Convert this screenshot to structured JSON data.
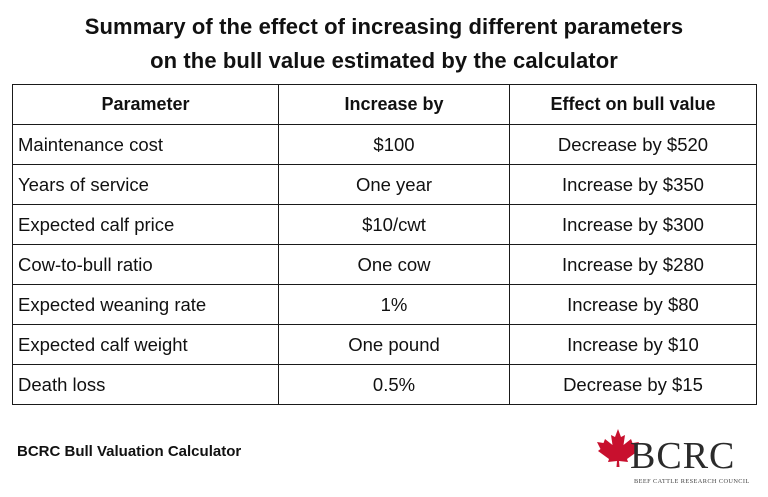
{
  "title": {
    "line1": "Summary of the effect of increasing different parameters",
    "line2": "on the bull value estimated by the calculator"
  },
  "table": {
    "headers": [
      "Parameter",
      "Increase by",
      "Effect on bull value"
    ],
    "rows": [
      [
        "Maintenance cost",
        "$100",
        "Decrease by $520"
      ],
      [
        "Years of service",
        "One year",
        "Increase by $350"
      ],
      [
        "Expected calf price",
        "$10/cwt",
        "Increase by $300"
      ],
      [
        "Cow-to-bull ratio",
        "One cow",
        "Increase by $280"
      ],
      [
        "Expected weaning rate",
        "1%",
        "Increase by $80"
      ],
      [
        "Expected calf weight",
        "One pound",
        "Increase by $10"
      ],
      [
        "Death loss",
        "0.5%",
        "Decrease by $15"
      ]
    ]
  },
  "footer": {
    "label": "BCRC Bull Valuation Calculator"
  },
  "logo": {
    "text": "BCRC",
    "subtitle": "BEEF CATTLE RESEARCH COUNCIL",
    "leaf_color": "#c8102e",
    "icon": "maple-leaf-icon"
  }
}
